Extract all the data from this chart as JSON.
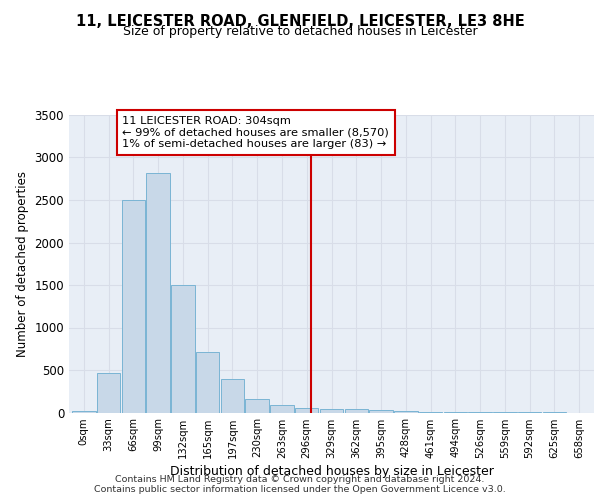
{
  "title": "11, LEICESTER ROAD, GLENFIELD, LEICESTER, LE3 8HE",
  "subtitle": "Size of property relative to detached houses in Leicester",
  "xlabel": "Distribution of detached houses by size in Leicester",
  "ylabel": "Number of detached properties",
  "bar_color": "#c8d8e8",
  "bar_edge_color": "#7ab4d4",
  "background_color": "#e8eef6",
  "grid_color": "#d8dde8",
  "bin_labels": [
    "0sqm",
    "33sqm",
    "66sqm",
    "99sqm",
    "132sqm",
    "165sqm",
    "197sqm",
    "230sqm",
    "263sqm",
    "296sqm",
    "329sqm",
    "362sqm",
    "395sqm",
    "428sqm",
    "461sqm",
    "494sqm",
    "526sqm",
    "559sqm",
    "592sqm",
    "625sqm",
    "658sqm"
  ],
  "bar_values": [
    20,
    470,
    2500,
    2820,
    1500,
    710,
    390,
    155,
    85,
    50,
    42,
    40,
    35,
    22,
    10,
    5,
    3,
    2,
    1,
    1,
    0
  ],
  "ylim": [
    0,
    3500
  ],
  "yticks": [
    0,
    500,
    1000,
    1500,
    2000,
    2500,
    3000,
    3500
  ],
  "property_line_x": 9.18,
  "annotation_title": "11 LEICESTER ROAD: 304sqm",
  "annotation_line1": "← 99% of detached houses are smaller (8,570)",
  "annotation_line2": "1% of semi-detached houses are larger (83) →",
  "footer1": "Contains HM Land Registry data © Crown copyright and database right 2024.",
  "footer2": "Contains public sector information licensed under the Open Government Licence v3.0.",
  "red_line_color": "#cc0000",
  "annotation_box_color": "#ffffff",
  "annotation_border_color": "#cc0000"
}
